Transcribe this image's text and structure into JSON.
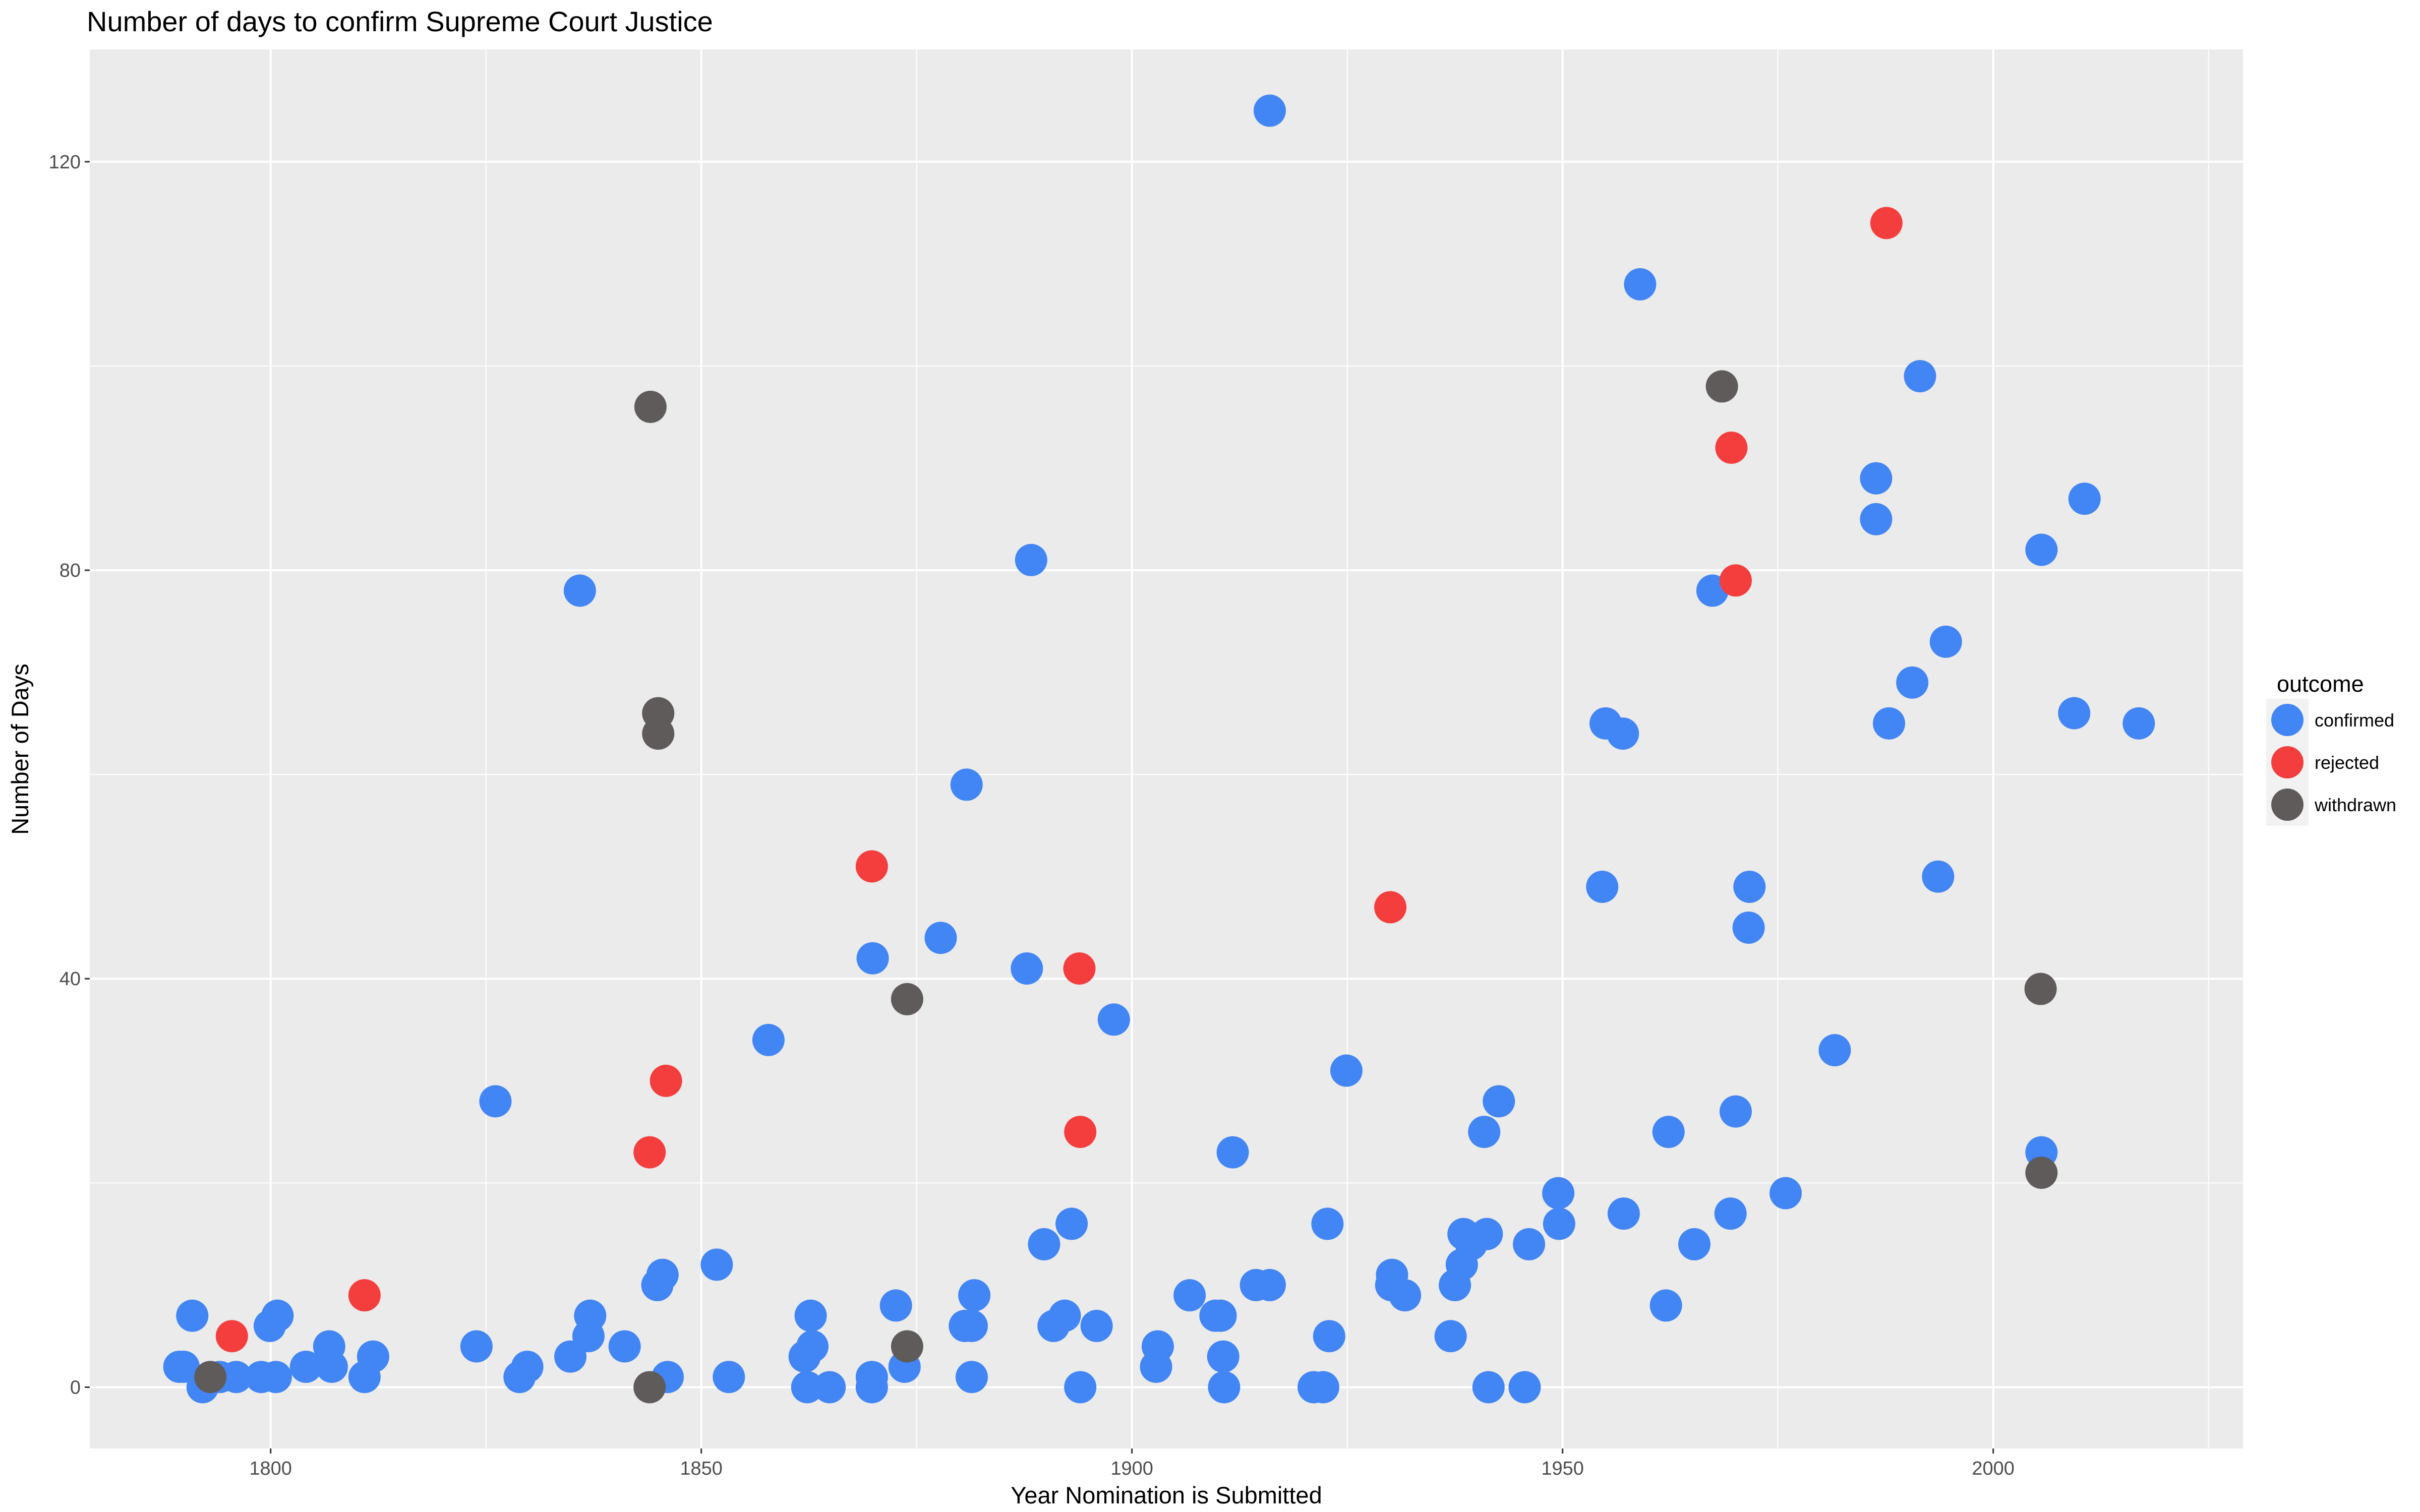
{
  "chart_data": {
    "type": "scatter",
    "title": "Number of days to confirm Supreme Court Justice",
    "xlabel": "Year Nomination is Submitted",
    "ylabel": "Number of Days",
    "xlim": [
      1779,
      2029
    ],
    "ylim": [
      -6,
      131
    ],
    "x_ticks": [
      1800,
      1850,
      1900,
      1950,
      2000
    ],
    "y_ticks": [
      0,
      40,
      80,
      120
    ],
    "grid": true,
    "legend": {
      "title": "outcome",
      "placement": "right"
    },
    "colors": {
      "panel": "#EBEBEB",
      "grid": "#FFFFFF",
      "confirmed": "#4285F4",
      "rejected": "#F43E3E",
      "withdrawn": "#5F5B5B"
    },
    "series": [
      {
        "name": "confirmed",
        "color": "#4285F4",
        "points": [
          [
            1789.4,
            2
          ],
          [
            1789.9,
            2
          ],
          [
            1790.9,
            7
          ],
          [
            1792.1,
            0
          ],
          [
            1794.1,
            1
          ],
          [
            1796.0,
            1
          ],
          [
            1798.9,
            1
          ],
          [
            1799.9,
            6
          ],
          [
            1800.8,
            7
          ],
          [
            1800.6,
            1
          ],
          [
            1804.1,
            2
          ],
          [
            1806.8,
            4
          ],
          [
            1807.1,
            2
          ],
          [
            1810.9,
            1
          ],
          [
            1811.9,
            3
          ],
          [
            1823.9,
            4
          ],
          [
            1826.1,
            28
          ],
          [
            1828.9,
            1
          ],
          [
            1829.8,
            2
          ],
          [
            1834.8,
            3
          ],
          [
            1835.9,
            78
          ],
          [
            1836.9,
            5
          ],
          [
            1837.1,
            7
          ],
          [
            1841.1,
            4
          ],
          [
            1844.9,
            10
          ],
          [
            1845.5,
            11
          ],
          [
            1846.1,
            1
          ],
          [
            1851.8,
            12
          ],
          [
            1853.2,
            1
          ],
          [
            1857.8,
            34
          ],
          [
            1862.0,
            3
          ],
          [
            1862.3,
            0
          ],
          [
            1862.7,
            7
          ],
          [
            1862.9,
            4
          ],
          [
            1864.9,
            0
          ],
          [
            1869.9,
            42
          ],
          [
            1869.8,
            1
          ],
          [
            1869.8,
            0
          ],
          [
            1872.6,
            8
          ],
          [
            1873.6,
            2
          ],
          [
            1877.8,
            44
          ],
          [
            1880.8,
            59
          ],
          [
            1880.6,
            6
          ],
          [
            1881.4,
            6
          ],
          [
            1881.7,
            9
          ],
          [
            1881.4,
            1
          ],
          [
            1887.8,
            41
          ],
          [
            1888.3,
            81
          ],
          [
            1889.8,
            14
          ],
          [
            1890.9,
            6
          ],
          [
            1892.2,
            7
          ],
          [
            1893.0,
            16
          ],
          [
            1894.0,
            0
          ],
          [
            1895.9,
            6
          ],
          [
            1897.9,
            36
          ],
          [
            1903.0,
            4
          ],
          [
            1902.8,
            2
          ],
          [
            1906.7,
            9
          ],
          [
            1909.7,
            7
          ],
          [
            1910.3,
            7
          ],
          [
            1910.6,
            3
          ],
          [
            1910.7,
            0
          ],
          [
            1911.7,
            23
          ],
          [
            1914.4,
            10
          ],
          [
            1916.0,
            10
          ],
          [
            1916.0,
            125
          ],
          [
            1921.1,
            0
          ],
          [
            1922.2,
            0
          ],
          [
            1922.7,
            16
          ],
          [
            1922.9,
            5
          ],
          [
            1924.9,
            31
          ],
          [
            1930.1,
            10
          ],
          [
            1930.2,
            11
          ],
          [
            1931.7,
            9
          ],
          [
            1937.0,
            5
          ],
          [
            1937.5,
            10
          ],
          [
            1938.3,
            12
          ],
          [
            1938.5,
            15
          ],
          [
            1939.4,
            14
          ],
          [
            1940.9,
            25
          ],
          [
            1941.2,
            15
          ],
          [
            1941.4,
            0
          ],
          [
            1942.6,
            28
          ],
          [
            1945.6,
            0
          ],
          [
            1946.1,
            14
          ],
          [
            1949.5,
            19
          ],
          [
            1949.6,
            16
          ],
          [
            1954.6,
            49
          ],
          [
            1955.0,
            65
          ],
          [
            1957.0,
            64
          ],
          [
            1957.1,
            17
          ],
          [
            1959.0,
            108
          ],
          [
            1962.0,
            8
          ],
          [
            1962.3,
            25
          ],
          [
            1965.3,
            14
          ],
          [
            1967.4,
            78
          ],
          [
            1969.5,
            17
          ],
          [
            1970.1,
            27
          ],
          [
            1971.7,
            49
          ],
          [
            1971.6,
            45
          ],
          [
            1975.9,
            19
          ],
          [
            1981.6,
            33
          ],
          [
            1986.4,
            85
          ],
          [
            1986.4,
            89
          ],
          [
            1987.9,
            65
          ],
          [
            1990.6,
            69
          ],
          [
            1991.5,
            99
          ],
          [
            1993.6,
            50
          ],
          [
            1994.5,
            73
          ],
          [
            2005.6,
            23
          ],
          [
            2005.6,
            82
          ],
          [
            2009.4,
            66
          ],
          [
            2010.6,
            87
          ],
          [
            2016.9,
            65
          ]
        ]
      },
      {
        "name": "rejected",
        "color": "#F43E3E",
        "points": [
          [
            1795.5,
            5
          ],
          [
            1810.9,
            9
          ],
          [
            1844.0,
            23
          ],
          [
            1845.9,
            30
          ],
          [
            1869.8,
            51
          ],
          [
            1893.9,
            41
          ],
          [
            1894.0,
            25
          ],
          [
            1930.0,
            47
          ],
          [
            1969.6,
            92
          ],
          [
            1970.1,
            79
          ],
          [
            1987.6,
            114
          ]
        ]
      },
      {
        "name": "withdrawn",
        "color": "#5F5B5B",
        "points": [
          [
            1793.0,
            1
          ],
          [
            1844.1,
            96
          ],
          [
            1844.0,
            0
          ],
          [
            1845.0,
            66
          ],
          [
            1845.0,
            64
          ],
          [
            1873.9,
            38
          ],
          [
            1873.9,
            4
          ],
          [
            1968.5,
            98
          ],
          [
            2005.5,
            39
          ],
          [
            2005.6,
            21
          ]
        ]
      }
    ]
  }
}
